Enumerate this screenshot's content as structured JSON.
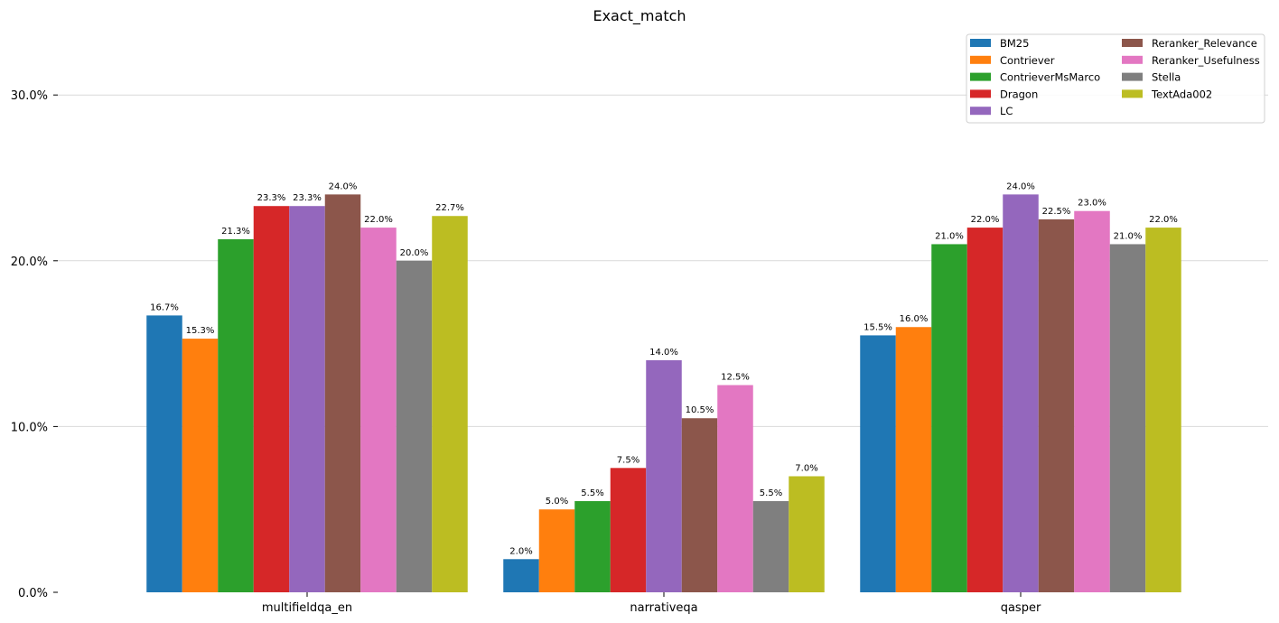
{
  "chart_data": {
    "type": "bar",
    "title": "Exact_match",
    "xlabel": "",
    "ylabel": "",
    "categories": [
      "multifieldqa_en",
      "narrativeqa",
      "qasper"
    ],
    "ylim": [
      0,
      0.32
    ],
    "yticks": [
      0.0,
      0.1,
      0.2,
      0.3
    ],
    "ytick_labels": [
      "0.0%",
      "10.0%",
      "20.0%",
      "30.0%"
    ],
    "grid": "horizontal",
    "legend_position": "top-right",
    "legend_columns": 2,
    "series": [
      {
        "name": "BM25",
        "color": "#1f77b4",
        "values": [
          0.167,
          0.02,
          0.155
        ],
        "labels": [
          "16.7%",
          "2.0%",
          "15.5%"
        ]
      },
      {
        "name": "Contriever",
        "color": "#ff7f0e",
        "values": [
          0.153,
          0.05,
          0.16
        ],
        "labels": [
          "15.3%",
          "5.0%",
          "16.0%"
        ]
      },
      {
        "name": "ContrieverMsMarco",
        "color": "#2ca02c",
        "values": [
          0.213,
          0.055,
          0.21
        ],
        "labels": [
          "21.3%",
          "5.5%",
          "21.0%"
        ]
      },
      {
        "name": "Dragon",
        "color": "#d62728",
        "values": [
          0.233,
          0.075,
          0.22
        ],
        "labels": [
          "23.3%",
          "7.5%",
          "22.0%"
        ]
      },
      {
        "name": "LC",
        "color": "#9467bd",
        "values": [
          0.233,
          0.14,
          0.24
        ],
        "labels": [
          "23.3%",
          "14.0%",
          "24.0%"
        ]
      },
      {
        "name": "Reranker_Relevance",
        "color": "#8c564b",
        "values": [
          0.24,
          0.105,
          0.225
        ],
        "labels": [
          "24.0%",
          "10.5%",
          "22.5%"
        ]
      },
      {
        "name": "Reranker_Usefulness",
        "color": "#e377c2",
        "values": [
          0.22,
          0.125,
          0.23
        ],
        "labels": [
          "22.0%",
          "12.5%",
          "23.0%"
        ]
      },
      {
        "name": "Stella",
        "color": "#7f7f7f",
        "values": [
          0.2,
          0.055,
          0.21
        ],
        "labels": [
          "20.0%",
          "5.5%",
          "21.0%"
        ]
      },
      {
        "name": "TextAda002",
        "color": "#bcbd22",
        "values": [
          0.227,
          0.07,
          0.22
        ],
        "labels": [
          "22.7%",
          "7.0%",
          "22.0%"
        ]
      }
    ]
  }
}
